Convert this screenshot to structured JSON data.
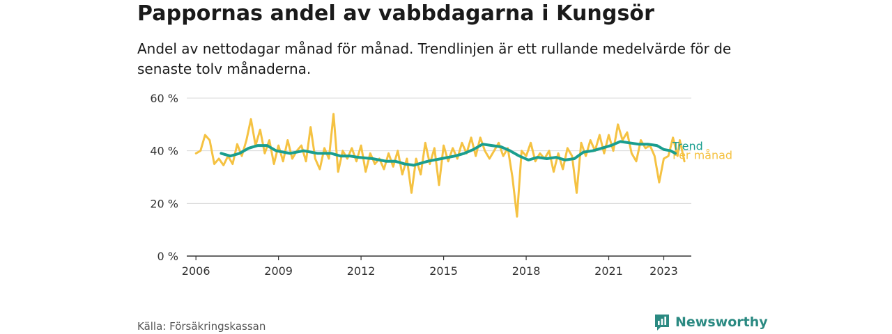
{
  "title": "Pappornas andel av vabbdagarna i Kungsör",
  "subtitle": "Andel av nettodagar månad för månad. Trendlinjen är ett rullande medelvärde för de senaste tolv månaderna.",
  "source": "Källa: Försäkringskassan",
  "brand": "Newsworthy",
  "colors": {
    "monthly": "#f5c242",
    "trend": "#1a9e8f",
    "grid": "#d9d9d9",
    "axis": "#333333",
    "brand": "#2b8a82"
  },
  "chart_data": {
    "type": "line",
    "x_ticks": [
      "2006",
      "2009",
      "2012",
      "2015",
      "2018",
      "2021",
      "2023"
    ],
    "y_ticks": [
      "0 %",
      "20 %",
      "40 %",
      "60 %"
    ],
    "ylim": [
      0,
      60
    ],
    "xlim": [
      "2005-09",
      "2024-01"
    ],
    "grid": true,
    "legend": "inline-right",
    "series": [
      {
        "name": "Trend",
        "color": "#1a9e8f",
        "points": [
          [
            "2006-12",
            39
          ],
          [
            "2007-04",
            38
          ],
          [
            "2007-08",
            39
          ],
          [
            "2007-12",
            41
          ],
          [
            "2008-04",
            42
          ],
          [
            "2008-08",
            42
          ],
          [
            "2008-12",
            40
          ],
          [
            "2009-06",
            39
          ],
          [
            "2009-12",
            40
          ],
          [
            "2010-06",
            39
          ],
          [
            "2010-12",
            39
          ],
          [
            "2011-04",
            38
          ],
          [
            "2011-08",
            38
          ],
          [
            "2011-12",
            37.5
          ],
          [
            "2012-06",
            37
          ],
          [
            "2012-12",
            36
          ],
          [
            "2013-04",
            36
          ],
          [
            "2013-08",
            35
          ],
          [
            "2013-12",
            34.5
          ],
          [
            "2014-06",
            36
          ],
          [
            "2014-12",
            37
          ],
          [
            "2015-06",
            38
          ],
          [
            "2015-10",
            39
          ],
          [
            "2016-02",
            40.5
          ],
          [
            "2016-06",
            42.5
          ],
          [
            "2016-10",
            42
          ],
          [
            "2017-02",
            41.5
          ],
          [
            "2017-06",
            40
          ],
          [
            "2017-10",
            38
          ],
          [
            "2018-02",
            36.5
          ],
          [
            "2018-06",
            37.5
          ],
          [
            "2018-10",
            37
          ],
          [
            "2019-02",
            37.5
          ],
          [
            "2019-06",
            36.5
          ],
          [
            "2019-10",
            37
          ],
          [
            "2020-02",
            39.5
          ],
          [
            "2020-06",
            40
          ],
          [
            "2020-10",
            41
          ],
          [
            "2021-02",
            42
          ],
          [
            "2021-06",
            43.5
          ],
          [
            "2021-10",
            43
          ],
          [
            "2022-02",
            42.5
          ],
          [
            "2022-06",
            42.5
          ],
          [
            "2022-10",
            42
          ],
          [
            "2023-01",
            40.5
          ],
          [
            "2023-04",
            40
          ],
          [
            "2023-06",
            39
          ]
        ]
      },
      {
        "name": "Per månad",
        "color": "#f5c242",
        "points": [
          [
            "2006-01",
            39
          ],
          [
            "2006-03",
            40
          ],
          [
            "2006-05",
            46
          ],
          [
            "2006-07",
            44
          ],
          [
            "2006-09",
            35
          ],
          [
            "2006-11",
            37
          ],
          [
            "2007-01",
            34.5
          ],
          [
            "2007-03",
            38
          ],
          [
            "2007-05",
            35
          ],
          [
            "2007-07",
            42.5
          ],
          [
            "2007-09",
            38
          ],
          [
            "2007-11",
            44
          ],
          [
            "2008-01",
            52
          ],
          [
            "2008-03",
            42
          ],
          [
            "2008-05",
            48
          ],
          [
            "2008-07",
            39
          ],
          [
            "2008-09",
            44
          ],
          [
            "2008-11",
            35
          ],
          [
            "2009-01",
            42
          ],
          [
            "2009-03",
            36
          ],
          [
            "2009-05",
            44
          ],
          [
            "2009-07",
            37
          ],
          [
            "2009-09",
            40
          ],
          [
            "2009-11",
            42
          ],
          [
            "2010-01",
            36
          ],
          [
            "2010-03",
            49
          ],
          [
            "2010-05",
            37
          ],
          [
            "2010-07",
            33
          ],
          [
            "2010-09",
            41
          ],
          [
            "2010-11",
            37
          ],
          [
            "2011-01",
            54
          ],
          [
            "2011-03",
            32
          ],
          [
            "2011-05",
            40
          ],
          [
            "2011-07",
            37
          ],
          [
            "2011-09",
            41
          ],
          [
            "2011-11",
            36
          ],
          [
            "2012-01",
            42
          ],
          [
            "2012-03",
            32
          ],
          [
            "2012-05",
            39
          ],
          [
            "2012-07",
            35
          ],
          [
            "2012-09",
            37
          ],
          [
            "2012-11",
            33
          ],
          [
            "2013-01",
            39
          ],
          [
            "2013-03",
            34
          ],
          [
            "2013-05",
            40
          ],
          [
            "2013-07",
            31
          ],
          [
            "2013-09",
            37
          ],
          [
            "2013-11",
            24
          ],
          [
            "2014-01",
            37
          ],
          [
            "2014-03",
            31
          ],
          [
            "2014-05",
            43
          ],
          [
            "2014-07",
            35
          ],
          [
            "2014-09",
            41
          ],
          [
            "2014-11",
            27
          ],
          [
            "2015-01",
            42
          ],
          [
            "2015-03",
            36
          ],
          [
            "2015-05",
            41
          ],
          [
            "2015-07",
            37
          ],
          [
            "2015-09",
            43
          ],
          [
            "2015-11",
            39
          ],
          [
            "2016-01",
            45
          ],
          [
            "2016-03",
            38
          ],
          [
            "2016-05",
            45
          ],
          [
            "2016-07",
            40
          ],
          [
            "2016-09",
            37
          ],
          [
            "2016-11",
            40
          ],
          [
            "2017-01",
            43
          ],
          [
            "2017-03",
            38
          ],
          [
            "2017-05",
            41
          ],
          [
            "2017-07",
            30
          ],
          [
            "2017-09",
            15
          ],
          [
            "2017-11",
            40
          ],
          [
            "2018-01",
            38
          ],
          [
            "2018-03",
            43
          ],
          [
            "2018-05",
            36
          ],
          [
            "2018-07",
            39
          ],
          [
            "2018-09",
            37
          ],
          [
            "2018-11",
            40
          ],
          [
            "2019-01",
            32
          ],
          [
            "2019-03",
            39
          ],
          [
            "2019-05",
            33
          ],
          [
            "2019-07",
            41
          ],
          [
            "2019-09",
            38
          ],
          [
            "2019-11",
            24
          ],
          [
            "2020-01",
            43
          ],
          [
            "2020-03",
            38
          ],
          [
            "2020-05",
            44
          ],
          [
            "2020-07",
            40
          ],
          [
            "2020-09",
            46
          ],
          [
            "2020-11",
            39
          ],
          [
            "2021-01",
            46
          ],
          [
            "2021-03",
            40
          ],
          [
            "2021-05",
            50
          ],
          [
            "2021-07",
            44
          ],
          [
            "2021-09",
            47
          ],
          [
            "2021-11",
            39
          ],
          [
            "2022-01",
            36
          ],
          [
            "2022-03",
            44
          ],
          [
            "2022-05",
            41
          ],
          [
            "2022-07",
            42
          ],
          [
            "2022-09",
            38
          ],
          [
            "2022-11",
            28
          ],
          [
            "2023-01",
            37
          ],
          [
            "2023-03",
            38
          ],
          [
            "2023-05",
            45
          ],
          [
            "2023-07",
            38
          ],
          [
            "2023-08",
            44
          ],
          [
            "2023-10",
            36
          ]
        ]
      }
    ]
  }
}
